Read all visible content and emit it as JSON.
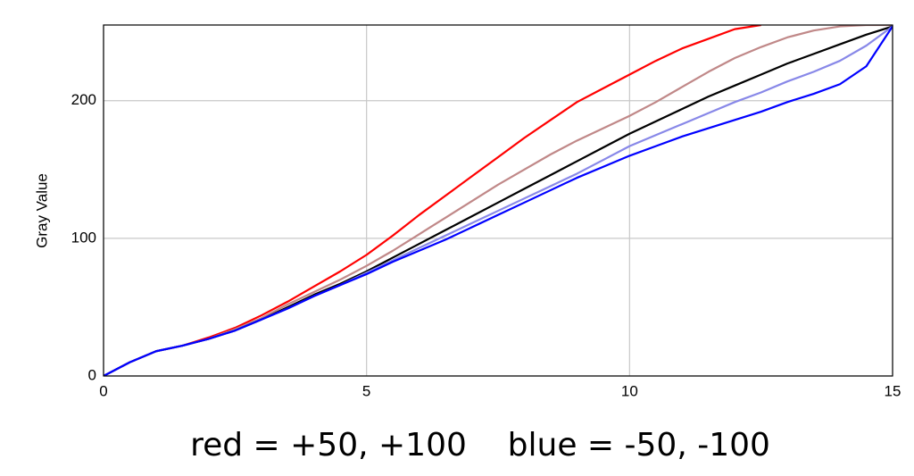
{
  "chart_data": {
    "type": "line",
    "ylabel": "Gray Value",
    "annotation": "red = +50, +100    blue = -50, -100",
    "x": [
      0,
      0.5,
      1,
      1.5,
      2,
      2.5,
      3,
      3.5,
      4,
      4.5,
      5,
      5.5,
      6,
      6.5,
      7,
      7.5,
      8,
      8.5,
      9,
      9.5,
      10,
      10.5,
      11,
      11.5,
      12,
      12.5,
      13,
      13.5,
      14,
      14.5,
      15
    ],
    "series": [
      {
        "color": "#ff0000",
        "values": [
          0,
          10,
          18,
          22,
          28,
          35,
          44,
          54,
          65,
          76,
          88,
          102,
          117,
          131,
          145,
          159,
          173,
          186,
          199,
          209,
          219,
          229,
          238,
          245,
          252,
          255,
          null,
          null,
          null,
          null,
          null
        ]
      },
      {
        "color": "#c08888",
        "values": [
          0,
          10,
          18,
          22,
          27,
          34,
          42,
          52,
          61,
          70,
          80,
          91,
          103,
          115,
          127,
          139,
          150,
          161,
          171,
          180,
          189,
          199,
          210,
          221,
          231,
          239,
          246,
          251,
          254,
          255,
          255
        ]
      },
      {
        "color": "#000000",
        "values": [
          0,
          10,
          18,
          22,
          27,
          33,
          41,
          50,
          59,
          67,
          76,
          86,
          96,
          106,
          116,
          126,
          136,
          146,
          156,
          166,
          176,
          185,
          194,
          203,
          211,
          219,
          227,
          234,
          241,
          248,
          254
        ]
      },
      {
        "color": "#8888e8",
        "values": [
          0,
          10,
          18,
          22,
          27,
          33,
          41,
          49,
          58,
          66,
          75,
          84,
          93,
          102,
          111,
          120,
          129,
          138,
          147,
          157,
          167,
          175,
          183,
          191,
          199,
          206,
          214,
          221,
          229,
          240,
          254
        ]
      },
      {
        "color": "#0000ff",
        "values": [
          0,
          10,
          18,
          22,
          27,
          33,
          41,
          49,
          58,
          66,
          74,
          83,
          91,
          99,
          108,
          117,
          126,
          135,
          144,
          152,
          160,
          167,
          174,
          180,
          186,
          192,
          199,
          205,
          212,
          225,
          254
        ]
      }
    ],
    "xlim": [
      0,
      15
    ],
    "xticks": [
      0,
      5,
      10,
      15
    ],
    "ylim": [
      0,
      255
    ],
    "yticks": [
      0,
      100,
      200
    ],
    "grid": true
  }
}
